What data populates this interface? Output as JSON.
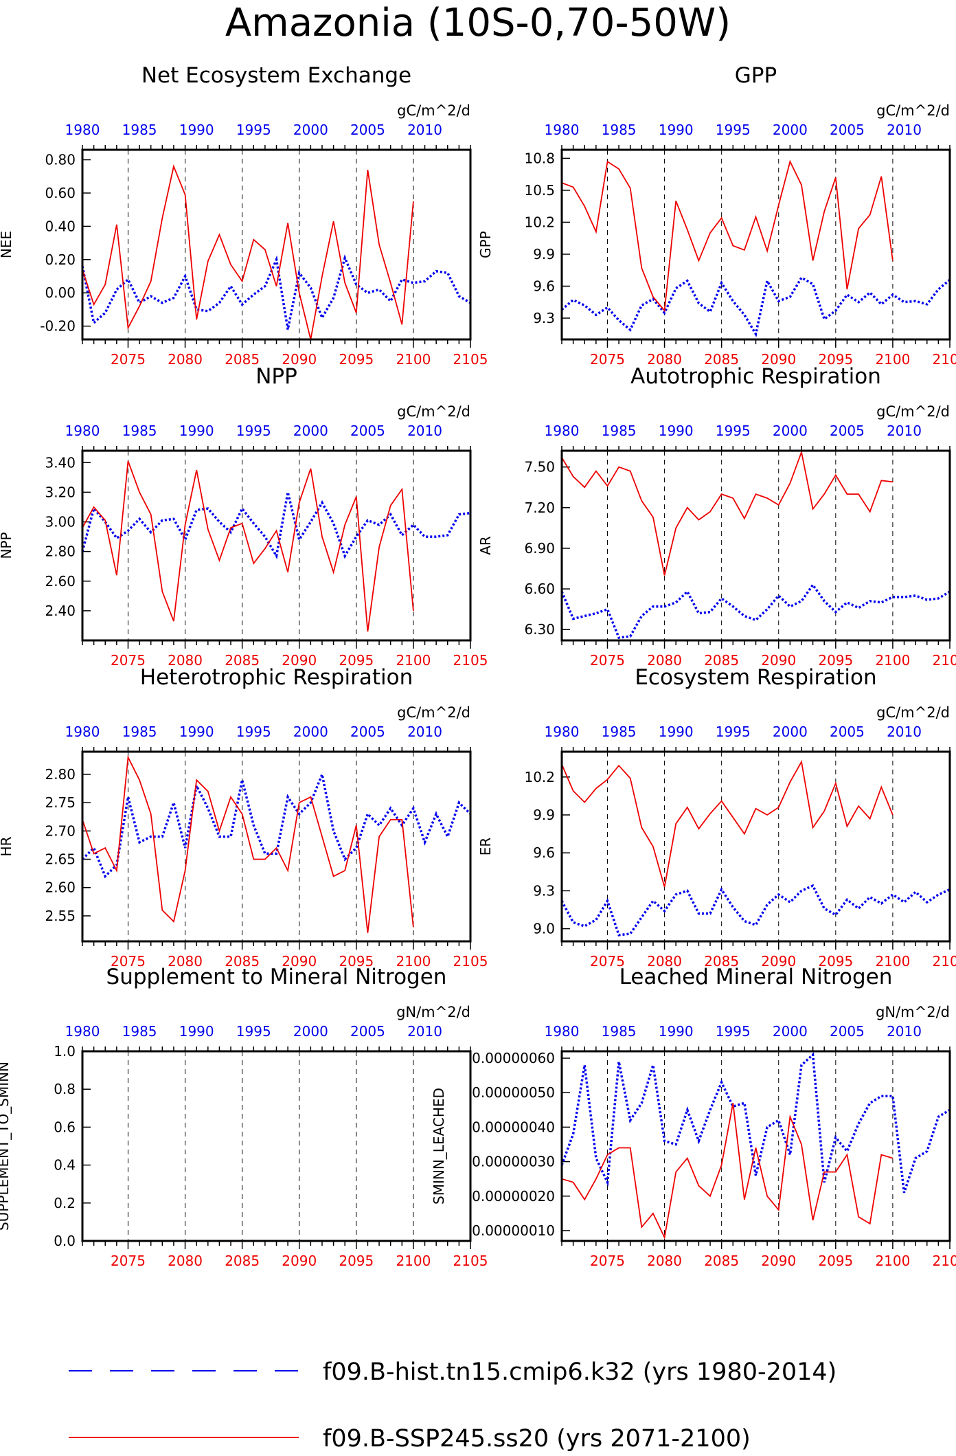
{
  "title": "Amazonia (10S-0,70-50W)",
  "colors": {
    "hist": "#0000ee",
    "ssp": "#ee0000",
    "axis": "#000000"
  },
  "legend": [
    {
      "label": "f09.B-hist.tn15.cmip6.k32 (yrs 1980-2014)",
      "color": "#0000ee",
      "style": "dashed"
    },
    {
      "label": "f09.B-SSP245.ss20 (yrs 2071-2100)",
      "color": "#ee0000",
      "style": "solid"
    }
  ],
  "chart_data": [
    {
      "type": "line",
      "title": "Net Ecosystem Exchange",
      "ylabel": "NEE",
      "units": "gC/m^2/d",
      "ylim": [
        -0.28,
        0.86
      ],
      "yticks": [
        -0.2,
        0.0,
        0.2,
        0.4,
        0.6,
        0.8
      ],
      "ytick_labels": [
        "-0.20",
        "0.00",
        "0.20",
        "0.40",
        "0.60",
        "0.80"
      ],
      "bottom_axis": {
        "range": [
          2071,
          2105
        ],
        "ticks": [
          2075,
          2080,
          2085,
          2090,
          2095,
          2100,
          2105
        ]
      },
      "top_axis": {
        "ticks": [
          1980,
          1985,
          1990,
          1995,
          2000,
          2005,
          2010
        ]
      },
      "grid": "vertical dashed at 2075-2100",
      "series": [
        {
          "name": "f09.B-hist.tn15.cmip6.k32",
          "x_start": 2071,
          "values": [
            0.16,
            -0.18,
            -0.12,
            0.02,
            0.08,
            -0.06,
            -0.02,
            -0.06,
            -0.03,
            0.1,
            -0.1,
            -0.11,
            -0.06,
            0.04,
            -0.07,
            -0.01,
            0.04,
            0.2,
            -0.22,
            0.12,
            0.03,
            -0.15,
            -0.03,
            0.21,
            0.05,
            0.0,
            0.02,
            -0.05,
            0.08,
            0.06,
            0.07,
            0.13,
            0.12,
            -0.02,
            -0.06
          ]
        },
        {
          "name": "f09.B-SSP245.ss20",
          "x_start": 2071,
          "values": [
            0.14,
            -0.07,
            0.05,
            0.41,
            -0.21,
            -0.08,
            0.07,
            0.45,
            0.76,
            0.59,
            -0.16,
            0.19,
            0.35,
            0.17,
            0.07,
            0.32,
            0.26,
            0.04,
            0.42,
            0.0,
            -0.28,
            0.1,
            0.43,
            0.06,
            -0.12,
            0.74,
            0.29,
            0.06,
            -0.19,
            0.55
          ]
        }
      ]
    },
    {
      "type": "line",
      "title": "GPP",
      "ylabel": "GPP",
      "units": "gC/m^2/d",
      "ylim": [
        9.1,
        10.88
      ],
      "yticks": [
        9.3,
        9.6,
        9.9,
        10.2,
        10.5,
        10.8
      ],
      "ytick_labels": [
        "9.3",
        "9.6",
        "9.9",
        "10.2",
        "10.5",
        "10.8"
      ],
      "bottom_axis": {
        "range": [
          2071,
          2105
        ],
        "ticks": [
          2075,
          2080,
          2085,
          2090,
          2095,
          2100,
          2105
        ]
      },
      "top_axis": {
        "ticks": [
          1980,
          1985,
          1990,
          1995,
          2000,
          2005,
          2010
        ]
      },
      "grid": "vertical dashed at 2075-2100",
      "series": [
        {
          "name": "f09.B-hist.tn15.cmip6.k32",
          "x_start": 2071,
          "values": [
            9.38,
            9.47,
            9.42,
            9.33,
            9.4,
            9.28,
            9.19,
            9.42,
            9.48,
            9.35,
            9.58,
            9.65,
            9.44,
            9.36,
            9.63,
            9.46,
            9.33,
            9.15,
            9.65,
            9.46,
            9.5,
            9.68,
            9.62,
            9.29,
            9.37,
            9.52,
            9.45,
            9.54,
            9.43,
            9.52,
            9.45,
            9.46,
            9.43,
            9.57,
            9.66
          ]
        },
        {
          "name": "f09.B-SSP245.ss20",
          "x_start": 2071,
          "values": [
            10.57,
            10.53,
            10.35,
            10.11,
            10.77,
            10.7,
            10.52,
            9.77,
            9.5,
            9.37,
            10.4,
            10.13,
            9.84,
            10.1,
            10.24,
            9.98,
            9.94,
            10.25,
            9.93,
            10.36,
            10.77,
            10.55,
            9.84,
            10.3,
            10.62,
            9.57,
            10.14,
            10.27,
            10.63,
            9.84
          ]
        }
      ]
    },
    {
      "type": "line",
      "title": "NPP",
      "ylabel": "NPP",
      "units": "gC/m^2/d",
      "ylim": [
        2.2,
        3.48
      ],
      "yticks": [
        2.4,
        2.6,
        2.8,
        3.0,
        3.2,
        3.4
      ],
      "ytick_labels": [
        "2.40",
        "2.60",
        "2.80",
        "3.00",
        "3.20",
        "3.40"
      ],
      "bottom_axis": {
        "range": [
          2071,
          2105
        ],
        "ticks": [
          2075,
          2080,
          2085,
          2090,
          2095,
          2100,
          2105
        ]
      },
      "top_axis": {
        "ticks": [
          1980,
          1985,
          1990,
          1995,
          2000,
          2005,
          2010
        ]
      },
      "grid": "vertical dashed at 2075-2100",
      "series": [
        {
          "name": "f09.B-hist.tn15.cmip6.k32",
          "x_start": 2071,
          "values": [
            2.8,
            3.09,
            3.0,
            2.89,
            2.94,
            3.02,
            2.93,
            3.01,
            3.02,
            2.88,
            3.08,
            3.09,
            3.0,
            2.93,
            3.09,
            2.99,
            2.9,
            2.77,
            3.2,
            2.88,
            3.0,
            3.13,
            2.99,
            2.77,
            2.9,
            3.01,
            2.98,
            3.05,
            2.91,
            2.98,
            2.9,
            2.9,
            2.91,
            3.05,
            3.06
          ]
        },
        {
          "name": "f09.B-SSP245.ss20",
          "x_start": 2071,
          "values": [
            2.96,
            3.1,
            3.01,
            2.64,
            3.41,
            3.2,
            3.05,
            2.53,
            2.33,
            2.98,
            3.35,
            2.95,
            2.74,
            2.96,
            2.99,
            2.72,
            2.82,
            2.94,
            2.66,
            3.13,
            3.36,
            2.9,
            2.66,
            2.98,
            3.17,
            2.26,
            2.83,
            3.11,
            3.22,
            2.4
          ]
        }
      ]
    },
    {
      "type": "line",
      "title": "Autotrophic Respiration",
      "ylabel": "AR",
      "units": "gC/m^2/d",
      "ylim": [
        6.22,
        7.62
      ],
      "yticks": [
        6.3,
        6.6,
        6.9,
        7.2,
        7.5
      ],
      "ytick_labels": [
        "6.30",
        "6.60",
        "6.90",
        "7.20",
        "7.50"
      ],
      "bottom_axis": {
        "range": [
          2071,
          2105
        ],
        "ticks": [
          2075,
          2080,
          2085,
          2090,
          2095,
          2100,
          2105
        ]
      },
      "top_axis": {
        "ticks": [
          1980,
          1985,
          1990,
          1995,
          2000,
          2005,
          2010
        ]
      },
      "grid": "vertical dashed at 2075-2100",
      "series": [
        {
          "name": "f09.B-hist.tn15.cmip6.k32",
          "x_start": 2071,
          "values": [
            6.58,
            6.38,
            6.4,
            6.42,
            6.45,
            6.24,
            6.25,
            6.4,
            6.47,
            6.47,
            6.5,
            6.58,
            6.42,
            6.43,
            6.53,
            6.47,
            6.4,
            6.37,
            6.45,
            6.55,
            6.47,
            6.51,
            6.63,
            6.51,
            6.43,
            6.5,
            6.46,
            6.51,
            6.5,
            6.54,
            6.54,
            6.55,
            6.52,
            6.53,
            6.58
          ]
        },
        {
          "name": "f09.B-SSP245.ss20",
          "x_start": 2071,
          "values": [
            7.57,
            7.43,
            7.35,
            7.47,
            7.36,
            7.5,
            7.47,
            7.25,
            7.13,
            6.7,
            7.05,
            7.2,
            7.11,
            7.17,
            7.3,
            7.27,
            7.12,
            7.3,
            7.27,
            7.22,
            7.38,
            7.61,
            7.19,
            7.3,
            7.44,
            7.3,
            7.3,
            7.17,
            7.4,
            7.39
          ]
        }
      ]
    },
    {
      "type": "line",
      "title": "Heterotrophic Respiration",
      "ylabel": "HR",
      "units": "gC/m^2/d",
      "ylim": [
        2.505,
        2.84
      ],
      "yticks": [
        2.55,
        2.6,
        2.65,
        2.7,
        2.75,
        2.8
      ],
      "ytick_labels": [
        "2.55",
        "2.60",
        "2.65",
        "2.70",
        "2.75",
        "2.80"
      ],
      "bottom_axis": {
        "range": [
          2071,
          2105
        ],
        "ticks": [
          2075,
          2080,
          2085,
          2090,
          2095,
          2100,
          2105
        ]
      },
      "top_axis": {
        "ticks": [
          1980,
          1985,
          1990,
          1995,
          2000,
          2005,
          2010
        ]
      },
      "grid": "vertical dashed at 2075-2100",
      "series": [
        {
          "name": "f09.B-hist.tn15.cmip6.k32",
          "x_start": 2071,
          "values": [
            2.65,
            2.67,
            2.62,
            2.64,
            2.76,
            2.68,
            2.69,
            2.69,
            2.75,
            2.67,
            2.78,
            2.74,
            2.69,
            2.69,
            2.79,
            2.71,
            2.66,
            2.66,
            2.76,
            2.73,
            2.75,
            2.8,
            2.7,
            2.65,
            2.67,
            2.73,
            2.71,
            2.74,
            2.71,
            2.74,
            2.68,
            2.73,
            2.69,
            2.75,
            2.73
          ]
        },
        {
          "name": "f09.B-SSP245.ss20",
          "x_start": 2071,
          "values": [
            2.72,
            2.66,
            2.67,
            2.63,
            2.83,
            2.79,
            2.73,
            2.56,
            2.54,
            2.63,
            2.79,
            2.77,
            2.7,
            2.76,
            2.73,
            2.65,
            2.65,
            2.67,
            2.63,
            2.75,
            2.76,
            2.69,
            2.62,
            2.63,
            2.71,
            2.52,
            2.69,
            2.72,
            2.72,
            2.53
          ]
        }
      ]
    },
    {
      "type": "line",
      "title": "Ecosystem Respiration",
      "ylabel": "ER",
      "units": "gC/m^2/d",
      "ylim": [
        8.9,
        10.4
      ],
      "yticks": [
        9.0,
        9.3,
        9.6,
        9.9,
        10.2
      ],
      "ytick_labels": [
        "9.0",
        "9.3",
        "9.6",
        "9.9",
        "10.2"
      ],
      "bottom_axis": {
        "range": [
          2071,
          2105
        ],
        "ticks": [
          2075,
          2080,
          2085,
          2090,
          2095,
          2100,
          2105
        ]
      },
      "top_axis": {
        "ticks": [
          1980,
          1985,
          1990,
          1995,
          2000,
          2005,
          2010
        ]
      },
      "grid": "vertical dashed at 2075-2100",
      "series": [
        {
          "name": "f09.B-hist.tn15.cmip6.k32",
          "x_start": 2071,
          "values": [
            9.22,
            9.05,
            9.02,
            9.07,
            9.22,
            8.95,
            8.96,
            9.09,
            9.22,
            9.14,
            9.27,
            9.3,
            9.12,
            9.12,
            9.31,
            9.17,
            9.06,
            9.03,
            9.19,
            9.27,
            9.21,
            9.3,
            9.34,
            9.16,
            9.11,
            9.23,
            9.16,
            9.25,
            9.2,
            9.27,
            9.21,
            9.29,
            9.21,
            9.27,
            9.31
          ]
        },
        {
          "name": "f09.B-SSP245.ss20",
          "x_start": 2071,
          "values": [
            10.3,
            10.09,
            10.0,
            10.11,
            10.18,
            10.29,
            10.19,
            9.8,
            9.65,
            9.33,
            9.83,
            9.96,
            9.79,
            9.91,
            10.01,
            9.88,
            9.75,
            9.95,
            9.9,
            9.96,
            10.16,
            10.32,
            9.8,
            9.93,
            10.15,
            9.81,
            9.97,
            9.87,
            10.12,
            9.9
          ]
        }
      ]
    },
    {
      "type": "line",
      "title": "Supplement to Mineral Nitrogen",
      "ylabel": "SUPPLEMENT_TO_SMINN",
      "units": "gN/m^2/d",
      "ylim": [
        0,
        1
      ],
      "yticks": [
        0.0,
        0.2,
        0.4,
        0.6,
        0.8,
        1.0
      ],
      "ytick_labels": [
        "0.0",
        "0.2",
        "0.4",
        "0.6",
        "0.8",
        "1.0"
      ],
      "bottom_axis": {
        "range": [
          2071,
          2105
        ],
        "ticks": [
          2075,
          2080,
          2085,
          2090,
          2095,
          2100,
          2105
        ]
      },
      "top_axis": {
        "ticks": [
          1980,
          1985,
          1990,
          1995,
          2000,
          2005,
          2010
        ]
      },
      "grid": "vertical dashed at 2075-2100",
      "series": []
    },
    {
      "type": "line",
      "title": "Leached Mineral Nitrogen",
      "ylabel": "SMINN_LEACHED",
      "units": "gN/m^2/d",
      "ylim": [
        7e-08,
        6.2e-07
      ],
      "yticks": [
        1e-07,
        2e-07,
        3e-07,
        4e-07,
        5e-07,
        6e-07
      ],
      "ytick_labels": [
        "0.00000010",
        "0.00000020",
        "0.00000030",
        "0.00000040",
        "0.00000050",
        "0.00000060"
      ],
      "bottom_axis": {
        "range": [
          2071,
          2105
        ],
        "ticks": [
          2075,
          2080,
          2085,
          2090,
          2095,
          2100,
          2105
        ]
      },
      "top_axis": {
        "ticks": [
          1980,
          1985,
          1990,
          1995,
          2000,
          2005,
          2010
        ]
      },
      "grid": "vertical dashed at 2075-2100",
      "series": [
        {
          "name": "f09.B-hist.tn15.cmip6.k32",
          "x_start": 2071,
          "values": [
            2.9e-07,
            3.8e-07,
            5.8e-07,
            3.1e-07,
            2.4e-07,
            5.9e-07,
            4.2e-07,
            4.7e-07,
            5.8e-07,
            3.6e-07,
            3.5e-07,
            4.5e-07,
            3.6e-07,
            4.5e-07,
            5.3e-07,
            4.6e-07,
            4.7e-07,
            2.6e-07,
            4e-07,
            4.2e-07,
            3.2e-07,
            5.8e-07,
            6.1e-07,
            2.4e-07,
            3.7e-07,
            3.3e-07,
            4.1e-07,
            4.7e-07,
            4.9e-07,
            4.9e-07,
            2.1e-07,
            3.1e-07,
            3.3e-07,
            4.3e-07,
            4.5e-07
          ]
        },
        {
          "name": "f09.B-SSP245.ss20",
          "x_start": 2071,
          "values": [
            2.5e-07,
            2.4e-07,
            1.9e-07,
            2.5e-07,
            3.2e-07,
            3.4e-07,
            3.4e-07,
            1.1e-07,
            1.5e-07,
            8e-08,
            2.7e-07,
            3.1e-07,
            2.3e-07,
            2e-07,
            2.9e-07,
            4.7e-07,
            1.9e-07,
            3.4e-07,
            2e-07,
            1.6e-07,
            4.3e-07,
            3.5e-07,
            1.3e-07,
            2.7e-07,
            2.7e-07,
            3.2e-07,
            1.4e-07,
            1.2e-07,
            3.2e-07,
            3.1e-07
          ]
        }
      ]
    }
  ]
}
